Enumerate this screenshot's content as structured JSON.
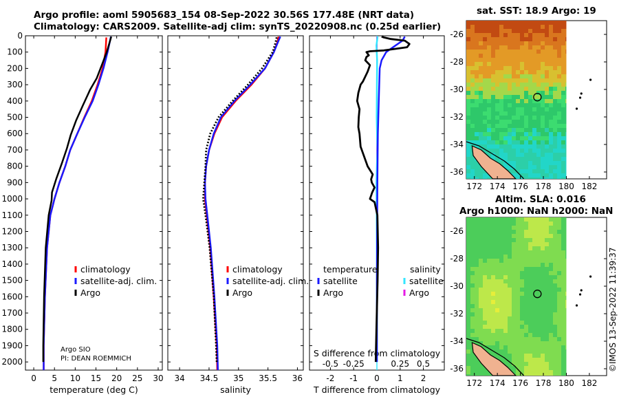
{
  "header": {
    "line1": "Argo profile: aoml 5905683_154 08-Sep-2022 30.56S 177.48E (NRT data)",
    "line2": "Climatology: CARS2009. Satellite-adj clim: synTS_20220908.nc (0.25d earlier)"
  },
  "credit": "©IMOS 13-Sep-2022 11:39:37",
  "pi_note": {
    "line1": "Argo SIO",
    "line2": "PI: DEAN ROEMMICH"
  },
  "colors": {
    "argo": "#000000",
    "climatology": "#ff0000",
    "satellite": "#1a1aff",
    "sat_salinity": "#33e6ff",
    "argo_salinity": "#e61ae6"
  },
  "chart_data": [
    {
      "type": "line",
      "name": "temperature-profile",
      "xlabel": "temperature (deg C)",
      "ylabel": "",
      "xlim": [
        -2,
        31
      ],
      "ylim": [
        2050,
        0
      ],
      "xticks": [
        0,
        5,
        10,
        15,
        20,
        25,
        30
      ],
      "yticks": [
        0,
        100,
        200,
        300,
        400,
        500,
        600,
        700,
        800,
        900,
        1000,
        1100,
        1200,
        1300,
        1400,
        1500,
        1600,
        1700,
        1800,
        1900,
        2000
      ],
      "legend": [
        "climatology",
        "satellite-adj. clim.",
        "Argo"
      ],
      "series": [
        {
          "name": "climatology",
          "x": [
            2.4,
            2.4,
            2.7,
            3.2,
            4.0,
            5.0,
            6.2,
            7.6,
            8.8,
            10.5,
            12.2,
            14.0,
            15.4,
            16.6,
            17.3,
            17.5
          ],
          "y": [
            2050,
            1900,
            1600,
            1300,
            1100,
            1000,
            900,
            800,
            700,
            600,
            500,
            400,
            300,
            200,
            100,
            10
          ]
        },
        {
          "name": "satellite-adj. clim.",
          "x": [
            2.4,
            2.4,
            2.7,
            3.2,
            4.0,
            5.0,
            6.2,
            7.6,
            8.8,
            10.5,
            12.3,
            14.2,
            15.6,
            16.8,
            17.8,
            18.4,
            18.6
          ],
          "y": [
            2050,
            1900,
            1600,
            1300,
            1100,
            1000,
            900,
            800,
            700,
            600,
            500,
            400,
            300,
            200,
            100,
            30,
            5
          ]
        },
        {
          "name": "Argo",
          "x": [
            2.3,
            2.3,
            2.5,
            2.9,
            3.6,
            4.3,
            4.4,
            5.4,
            6.8,
            8.0,
            8.9,
            10.2,
            11.8,
            13.6,
            15.2,
            16.4,
            17.6,
            18.3,
            18.7
          ],
          "y": [
            2000,
            1900,
            1600,
            1300,
            1100,
            1010,
            960,
            880,
            780,
            690,
            610,
            520,
            430,
            330,
            260,
            180,
            100,
            40,
            5
          ]
        }
      ]
    },
    {
      "type": "line",
      "name": "salinity-profile",
      "xlabel": "salinity",
      "xlim": [
        33.8,
        36.1
      ],
      "ylim": [
        2050,
        0
      ],
      "xticks": [
        34,
        34.5,
        35,
        35.5,
        36
      ],
      "legend": [
        "climatology",
        "satellite-adj. clim.",
        "Argo"
      ],
      "series": [
        {
          "name": "climatology",
          "x": [
            34.64,
            34.63,
            34.58,
            34.52,
            34.46,
            34.43,
            34.43,
            34.45,
            34.5,
            34.59,
            34.72,
            34.95,
            35.22,
            35.45,
            35.6,
            35.66,
            35.68
          ],
          "y": [
            2050,
            1900,
            1600,
            1300,
            1100,
            1000,
            900,
            800,
            700,
            600,
            500,
            400,
            300,
            200,
            100,
            40,
            5
          ]
        },
        {
          "name": "satellite-adj. clim.",
          "x": [
            34.65,
            34.64,
            34.59,
            34.53,
            34.47,
            34.44,
            34.43,
            34.45,
            34.5,
            34.58,
            34.7,
            34.93,
            35.2,
            35.45,
            35.6,
            35.68,
            35.71
          ],
          "y": [
            2050,
            1900,
            1600,
            1300,
            1100,
            1000,
            900,
            800,
            700,
            600,
            500,
            400,
            300,
            200,
            100,
            30,
            5
          ]
        },
        {
          "name": "Argo",
          "x": [
            34.63,
            34.62,
            34.58,
            34.51,
            34.44,
            34.4,
            34.42,
            34.44,
            34.45,
            34.52,
            34.66,
            34.9,
            35.16,
            35.4,
            35.58,
            35.63,
            35.65
          ],
          "y": [
            2000,
            1900,
            1600,
            1300,
            1100,
            1000,
            900,
            800,
            700,
            600,
            500,
            400,
            300,
            200,
            100,
            40,
            5
          ]
        }
      ]
    },
    {
      "type": "line",
      "name": "difference-profile",
      "xlabel": "T difference from climatology",
      "x2label": "S difference from climatology",
      "xlim": [
        -2.9,
        2.9
      ],
      "ylim": [
        2050,
        0
      ],
      "xticks": [
        -2,
        -1,
        0,
        1,
        2
      ],
      "x2ticks": [
        -0.5,
        -0.25,
        0,
        0.25,
        0.5
      ],
      "legend": [
        "temperature",
        "satellite",
        "Argo",
        "salinity",
        "satellite",
        "Argo"
      ],
      "series": [
        {
          "name": "T satellite",
          "x": [
            0,
            0,
            0.02,
            0.04,
            0.08,
            0.12,
            0.2,
            0.4,
            0.8,
            1.1,
            1.2
          ],
          "y": [
            2000,
            1500,
            900,
            600,
            400,
            200,
            150,
            100,
            60,
            30,
            5
          ]
        },
        {
          "name": "T Argo",
          "x": [
            -0.05,
            -0.02,
            0.03,
            0.05,
            0.02,
            -0.1,
            -0.3,
            -0.25,
            -0.2,
            -0.1,
            -0.22,
            -0.25,
            -0.18,
            -0.4,
            -0.5,
            -0.6,
            -0.7,
            -0.75,
            -0.8,
            -0.78,
            -0.75,
            -0.85,
            -0.8,
            -0.7,
            -0.6,
            -0.5,
            -0.4,
            -0.3,
            -0.5,
            -0.45,
            -0.35,
            -0.45,
            -0.3,
            0.3,
            0.8,
            1.3,
            1.4,
            1.2,
            0.6,
            0.3,
            0.2
          ],
          "y": [
            2000,
            1800,
            1500,
            1300,
            1100,
            1020,
            1000,
            980,
            960,
            930,
            900,
            880,
            850,
            800,
            760,
            720,
            680,
            600,
            560,
            500,
            450,
            400,
            350,
            300,
            280,
            250,
            220,
            180,
            150,
            130,
            120,
            100,
            95,
            90,
            80,
            70,
            50,
            30,
            20,
            10,
            5
          ]
        },
        {
          "name": "S satellite",
          "x": [
            0,
            0,
            0,
            -0.01,
            -0.02,
            0.02,
            -0.01,
            0,
            0.01,
            -0.02,
            0.03
          ],
          "y": [
            2000,
            1700,
            1400,
            1100,
            900,
            700,
            500,
            300,
            150,
            60,
            5
          ]
        },
        {
          "name": "S Argo",
          "x": [
            0,
            0,
            0,
            0,
            0,
            0
          ],
          "y": [
            2000,
            1600,
            1200,
            800,
            400,
            5
          ]
        }
      ]
    },
    {
      "type": "heatmap",
      "name": "sst-map",
      "title": "sat. SST: 18.9 Argo: 19",
      "xlim": [
        171.3,
        183.5
      ],
      "ylim": [
        -36.5,
        -25.0
      ],
      "xticks": [
        172,
        174,
        176,
        178,
        180,
        182
      ],
      "yticks": [
        -26,
        -28,
        -30,
        -32,
        -34,
        -36
      ],
      "profile_lon": 177.48,
      "profile_lat": -30.56,
      "sst_value": 18.9,
      "argo_value": 19
    },
    {
      "type": "heatmap",
      "name": "sla-map",
      "title": "Altim. SLA: 0.016",
      "subtitle": "Argo h1000: NaN h2000: NaN",
      "xlim": [
        171.3,
        183.5
      ],
      "ylim": [
        -36.5,
        -25.0
      ],
      "xticks": [
        172,
        174,
        176,
        178,
        180,
        182
      ],
      "yticks": [
        -26,
        -28,
        -30,
        -32,
        -34,
        -36
      ],
      "profile_lon": 177.48,
      "profile_lat": -30.56,
      "sla_value": 0.016
    }
  ]
}
